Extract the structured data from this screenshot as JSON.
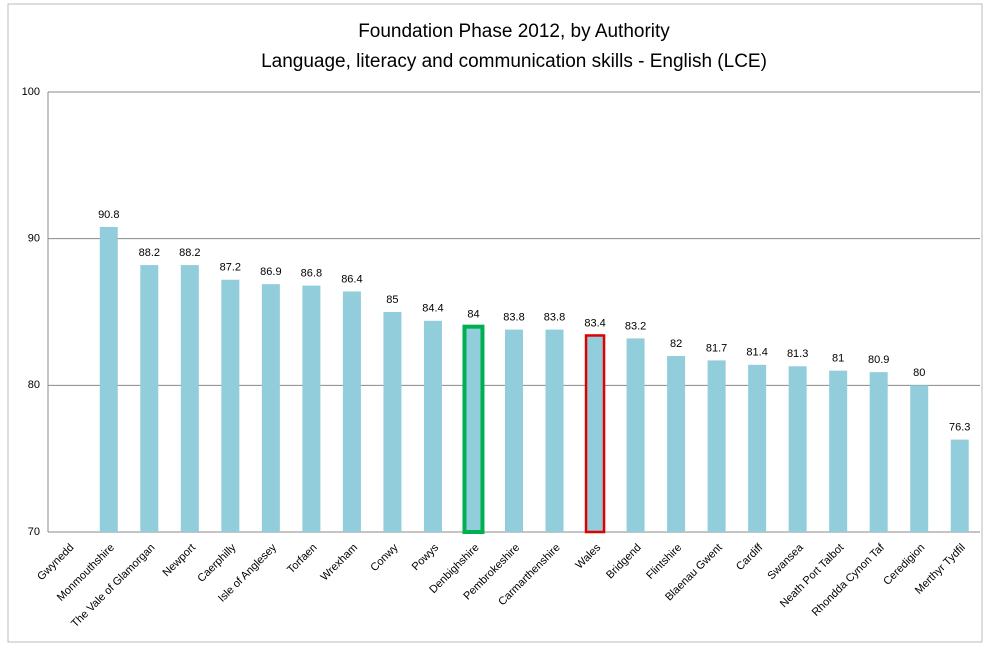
{
  "chart_data": {
    "type": "bar",
    "title": "Foundation Phase 2012, by Authority",
    "subtitle": "Language, literacy and communication skills - English (LCE)",
    "categories": [
      "Gwynedd",
      "Monmouthshire",
      "The Vale of Glamorgan",
      "Newport",
      "Caerphilly",
      "Isle of Anglesey",
      "Torfaen",
      "Wrexham",
      "Conwy",
      "Powys",
      "Denbighshire",
      "Pembrokeshire",
      "Carmarthenshire",
      "Wales",
      "Bridgend",
      "Flintshire",
      "Blaenau Gwent",
      "Cardiff",
      "Swansea",
      "Neath Port Talbot",
      "Rhondda Cynon Taf",
      "Ceredigion",
      "Merthyr Tydfil"
    ],
    "values": [
      null,
      90.8,
      88.2,
      88.2,
      87.2,
      86.9,
      86.8,
      86.4,
      85,
      84.4,
      84,
      83.8,
      83.8,
      83.4,
      83.2,
      82,
      81.7,
      81.4,
      81.3,
      81,
      80.9,
      80,
      76.3
    ],
    "color": "#92cddc",
    "outline_colors": [
      null,
      null,
      null,
      null,
      null,
      null,
      null,
      null,
      null,
      null,
      "#00b050",
      null,
      null,
      "#e00000",
      null,
      null,
      null,
      null,
      null,
      null,
      null,
      null,
      null
    ],
    "ylim": [
      70,
      100
    ],
    "yticks": [
      70,
      80,
      90,
      100
    ],
    "grid": true
  }
}
